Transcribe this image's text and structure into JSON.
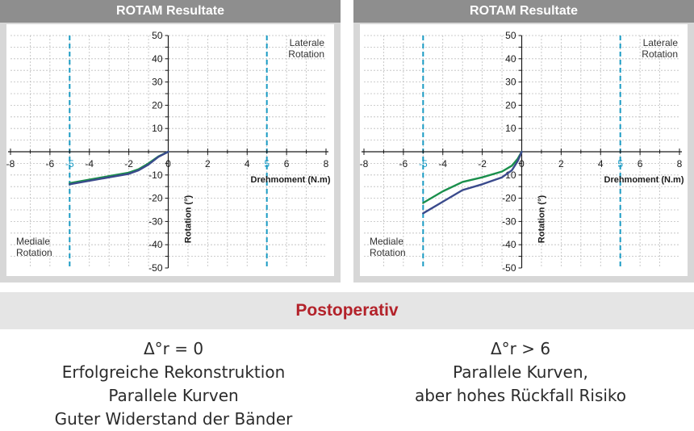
{
  "band": {
    "title": "Postoperativ"
  },
  "results": [
    {
      "lines": [
        "Δ°r = 0",
        "Erfolgreiche Rekonstruktion",
        "Parallele Kurven",
        "Guter Widerstand der Bänder"
      ]
    },
    {
      "lines": [
        "Δ°r > 6",
        "Parallele Kurven,",
        "aber hohes Rückfall Risiko"
      ]
    }
  ],
  "colors": {
    "green": "#1a8f4c",
    "blue": "#3a4a8c",
    "dash": "#1a9bc4",
    "title_red": "#b3222a"
  },
  "chart_data": [
    {
      "type": "line",
      "title": "ROTAM Resultate",
      "xlabel": "Drehmoment (N.m)",
      "ylabel": "Rotation (°)",
      "xlim": [
        -8,
        8
      ],
      "ylim": [
        -50,
        50
      ],
      "x_ticks": [
        -8,
        -6,
        -5,
        -4,
        -2,
        0,
        2,
        4,
        5,
        6,
        8
      ],
      "y_ticks": [
        -50,
        -40,
        -30,
        -20,
        -10,
        0,
        10,
        20,
        30,
        40,
        50
      ],
      "highlight_ticks": [
        -5,
        5
      ],
      "grid": true,
      "annotations": [
        {
          "text": [
            "Laterale",
            "Rotation"
          ],
          "x": 8,
          "y": 50
        },
        {
          "text": [
            "Mediale",
            "Rotation"
          ],
          "x": -8,
          "y": -38
        }
      ],
      "reference_lines": [
        -5,
        5
      ],
      "series": [
        {
          "color": "#1a8f4c",
          "x": [
            -5,
            -4,
            -3,
            -2,
            -1.5,
            -1,
            -0.5,
            0
          ],
          "y": [
            -13.5,
            -12,
            -10.5,
            -9,
            -7.5,
            -5,
            -2,
            0
          ]
        },
        {
          "color": "#3a4a8c",
          "x": [
            -5,
            -4,
            -3,
            -2,
            -1.5,
            -1,
            -0.5,
            0
          ],
          "y": [
            -14,
            -12.5,
            -11,
            -9.5,
            -8,
            -5.5,
            -2.2,
            0
          ]
        }
      ]
    },
    {
      "type": "line",
      "title": "ROTAM Resultate",
      "xlabel": "Drehmoment (N.m)",
      "ylabel": "Rotation (°)",
      "xlim": [
        -8,
        8
      ],
      "ylim": [
        -50,
        50
      ],
      "x_ticks": [
        -8,
        -6,
        -5,
        -4,
        -2,
        0,
        2,
        4,
        5,
        6,
        8
      ],
      "y_ticks": [
        -50,
        -40,
        -30,
        -20,
        -10,
        0,
        10,
        20,
        30,
        40,
        50
      ],
      "highlight_ticks": [
        -5,
        5
      ],
      "grid": true,
      "annotations": [
        {
          "text": [
            "Laterale",
            "Rotation"
          ],
          "x": 8,
          "y": 50
        },
        {
          "text": [
            "Mediale",
            "Rotation"
          ],
          "x": -8,
          "y": -38
        }
      ],
      "reference_lines": [
        -5,
        5
      ],
      "series": [
        {
          "color": "#1a8f4c",
          "x": [
            -5,
            -4,
            -3,
            -2,
            -1,
            -0.5,
            -0.2,
            0
          ],
          "y": [
            -22,
            -17,
            -13,
            -11,
            -8.5,
            -6,
            -3,
            0
          ]
        },
        {
          "color": "#3a4a8c",
          "x": [
            -5,
            -4,
            -3,
            -2,
            -1,
            -0.5,
            -0.2,
            0
          ],
          "y": [
            -26.5,
            -21.5,
            -16.5,
            -14,
            -11,
            -8,
            -4,
            0
          ]
        }
      ]
    }
  ]
}
